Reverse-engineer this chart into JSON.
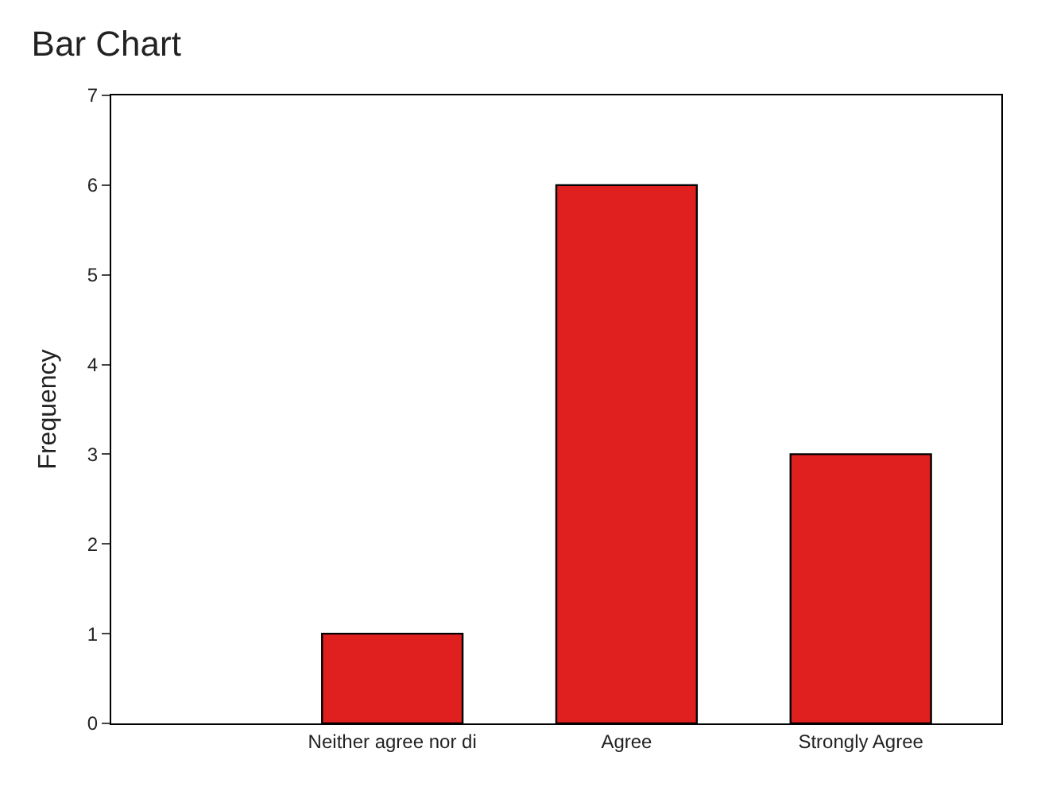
{
  "chart_data": {
    "type": "bar",
    "title": "Bar Chart",
    "ylabel": "Frequency",
    "categories": [
      "Neither agree nor di",
      "Agree",
      "Strongly Agree"
    ],
    "values": [
      1,
      6,
      3
    ],
    "color": "#e0201e",
    "ylim": [
      0,
      7
    ],
    "yticks": [
      0,
      1,
      2,
      3,
      4,
      5,
      6,
      7
    ],
    "grid": false,
    "legend": false
  }
}
